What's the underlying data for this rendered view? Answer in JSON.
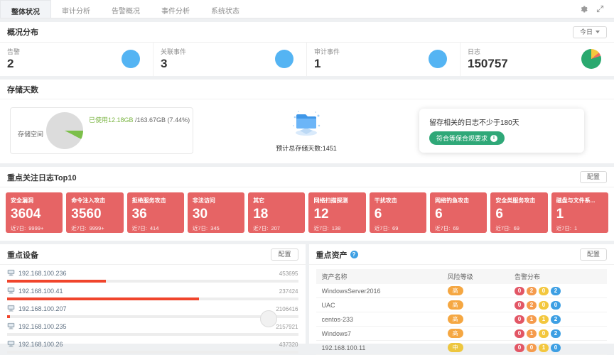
{
  "tabs": {
    "items": [
      {
        "label": "整体状况",
        "active": true
      },
      {
        "label": "审计分析",
        "active": false
      },
      {
        "label": "告警概况",
        "active": false
      },
      {
        "label": "事件分析",
        "active": false
      },
      {
        "label": "系统状态",
        "active": false
      }
    ]
  },
  "icons": {
    "settings": "gear-icon",
    "fullscreen": "expand-arrows-icon",
    "device": "monitor-icon",
    "assets_help": "question-circle-icon",
    "compliance_info": "info-circle-icon"
  },
  "overview": {
    "title": "概况分布",
    "range_label": "今日",
    "metrics": [
      {
        "label": "告警",
        "value": "2",
        "icon": "circle"
      },
      {
        "label": "关联事件",
        "value": "3",
        "icon": "circle"
      },
      {
        "label": "审计事件",
        "value": "1",
        "icon": "circle"
      },
      {
        "label": "日志",
        "value": "150757",
        "icon": "pie"
      }
    ]
  },
  "storage": {
    "title": "存储天数",
    "space_label": "存储空间",
    "usage_used": "已使用12.18GB",
    "usage_total": " /163.67GB (7.44%)",
    "used_percent": 7.44,
    "days_caption": "预计总存储天数:1451",
    "note_text": "留存相关的日志不少于180天",
    "compliance_label": "符合等保合规要求"
  },
  "top10": {
    "title": "重点关注日志Top10",
    "config_label": "配置",
    "recent_label": "近7日:",
    "cards": [
      {
        "title": "安全漏洞",
        "value": "3604",
        "recent": "9999+"
      },
      {
        "title": "命令注入攻击",
        "value": "3560",
        "recent": "9999+"
      },
      {
        "title": "拒绝服务攻击",
        "value": "36",
        "recent": "414"
      },
      {
        "title": "非法访问",
        "value": "30",
        "recent": "345"
      },
      {
        "title": "其它",
        "value": "18",
        "recent": "207"
      },
      {
        "title": "网络扫描探测",
        "value": "12",
        "recent": "138"
      },
      {
        "title": "干扰攻击",
        "value": "6",
        "recent": "69"
      },
      {
        "title": "网络钓鱼攻击",
        "value": "6",
        "recent": "69"
      },
      {
        "title": "安全类服务攻击",
        "value": "6",
        "recent": "69"
      },
      {
        "title": "磁盘与文件系...",
        "value": "1",
        "recent": "1"
      }
    ]
  },
  "devices": {
    "title": "重点设备",
    "config_label": "配置",
    "rows": [
      {
        "ip": "192.168.100.236",
        "count": "453695",
        "bar_pct": 34
      },
      {
        "ip": "192.168.100.41",
        "count": "237424",
        "bar_pct": 66
      },
      {
        "ip": "192.168.100.207",
        "count": "2106416",
        "bar_pct": 1
      },
      {
        "ip": "192.168.100.235",
        "count": "2157921",
        "bar_pct": 0
      },
      {
        "ip": "192.168.100.26",
        "count": "437320",
        "bar_pct": 0
      }
    ]
  },
  "assets": {
    "title": "重点资产",
    "config_label": "配置",
    "columns": [
      "资产名称",
      "风险等级",
      "告警分布"
    ],
    "rows": [
      {
        "name": "WindowsServer2016",
        "risk": "高",
        "risk_level": "high",
        "alerts": [
          "0",
          "2",
          "0",
          "2"
        ]
      },
      {
        "name": "UAC",
        "risk": "高",
        "risk_level": "high",
        "alerts": [
          "0",
          "2",
          "0",
          "0"
        ]
      },
      {
        "name": "centos-233",
        "risk": "高",
        "risk_level": "high",
        "alerts": [
          "0",
          "1",
          "1",
          "2"
        ]
      },
      {
        "name": "Windows7",
        "risk": "高",
        "risk_level": "high",
        "alerts": [
          "0",
          "1",
          "0",
          "2"
        ]
      },
      {
        "name": "192.168.100.11",
        "risk": "中",
        "risk_level": "medium",
        "alerts": [
          "0",
          "0",
          "1",
          "0"
        ]
      }
    ]
  },
  "colors": {
    "stat_card_red": "#e66465",
    "metric_circle_blue": "#54b4f3",
    "compliance_green": "#2fa878",
    "device_bar_red": "#f0452c",
    "storage_used_green": "#7cbf4a",
    "risk_high_orange": "#f5a742",
    "risk_medium_yellow": "#edc63f",
    "alert_pill_colors": [
      "#e25665",
      "#f59b4d",
      "#f3c73e",
      "#3d9fe3"
    ]
  }
}
